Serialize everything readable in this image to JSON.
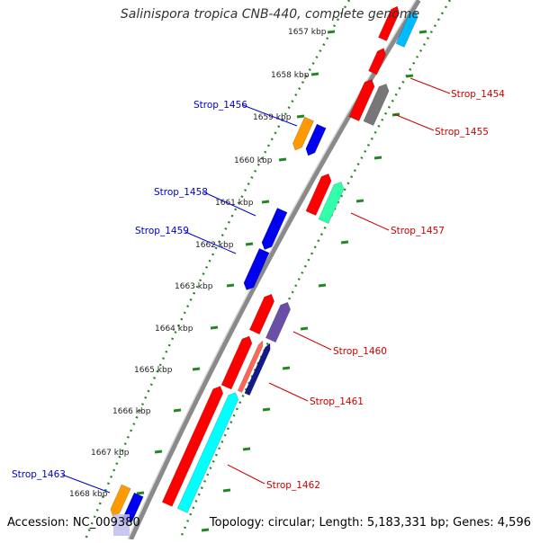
{
  "title": "Salinispora tropica CNB-440, complete genome",
  "accession": "Accession: NC_009380",
  "topology": "Topology: circular; Length: 5,183,331 bp; Genes: 4,596",
  "ruler": {
    "ticks": [
      "1657 kbp",
      "1658 kbp",
      "1659 kbp",
      "1660 kbp",
      "1661 kbp",
      "1662 kbp",
      "1663 kbp",
      "1664 kbp",
      "1665 kbp",
      "1666 kbp",
      "1667 kbp",
      "1668 kbp"
    ]
  },
  "genes_forward": [
    {
      "label": "Strop_1454",
      "color": "#ff0000"
    },
    {
      "label": "Strop_1455",
      "color": "#ff0000"
    },
    {
      "label": "Strop_1457",
      "color": "#ff0000"
    },
    {
      "label": "Strop_1460",
      "color": "#ff0000"
    },
    {
      "label": "Strop_1461",
      "color": "#ff0000"
    },
    {
      "label": "Strop_1462",
      "color": "#ff0000"
    }
  ],
  "genes_reverse": [
    {
      "label": "Strop_1456",
      "color": "#0000cc"
    },
    {
      "label": "Strop_1458",
      "color": "#0000cc"
    },
    {
      "label": "Strop_1459",
      "color": "#0000cc"
    },
    {
      "label": "Strop_1463",
      "color": "#0000cc"
    }
  ],
  "colors": {
    "cds": "#ff0000",
    "gene_blue": "#0000ee",
    "cog_orange": "#ff9900",
    "cog_cyan": "#00ffff",
    "cog_teal": "#33ffaa",
    "cog_grey": "#777777",
    "cog_purple": "#6a4fa8",
    "cog_navy": "#111a88",
    "cog_salmon": "#ff6655",
    "cog_sky": "#00bbff",
    "backbone": "#888888",
    "ruler_dots": "#228822",
    "label_forward": "#cc0000",
    "label_reverse": "#0000cc"
  }
}
